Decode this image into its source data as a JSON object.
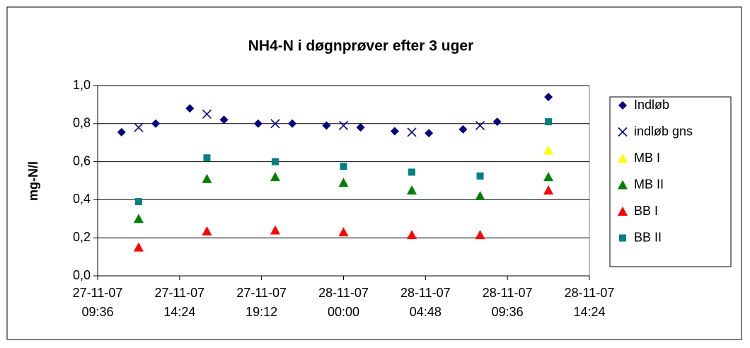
{
  "chart_data": {
    "type": "scatter",
    "title": "NH4-N i døgnprøver efter 3 uger",
    "ylabel": "mg-N/l",
    "xlim": [
      "2007-11-27T09:36",
      "2007-11-28T14:24"
    ],
    "xticks": [
      {
        "value": "2007-11-27T09:36",
        "label": "27-11-07 09:36"
      },
      {
        "value": "2007-11-27T14:24",
        "label": "27-11-07 14:24"
      },
      {
        "value": "2007-11-27T19:12",
        "label": "27-11-07 19:12"
      },
      {
        "value": "2007-11-28T00:00",
        "label": "28-11-07 00:00"
      },
      {
        "value": "2007-11-28T04:48",
        "label": "28-11-07 04:48"
      },
      {
        "value": "2007-11-28T09:36",
        "label": "28-11-07 09:36"
      },
      {
        "value": "2007-11-28T14:24",
        "label": "28-11-07 14:24"
      }
    ],
    "ylim": [
      0,
      1
    ],
    "yticks": [
      {
        "value": 0,
        "label": "0,0"
      },
      {
        "value": 0.2,
        "label": "0,2"
      },
      {
        "value": 0.4,
        "label": "0,4"
      },
      {
        "value": 0.6,
        "label": "0,6"
      },
      {
        "value": 0.8,
        "label": "0,8"
      },
      {
        "value": 1,
        "label": "1,0"
      }
    ],
    "grid": true,
    "legend": "right",
    "series": [
      {
        "name": "Indløb",
        "color": "#000080",
        "marker": "diamond",
        "x": [
          "2007-11-27T11:00",
          "2007-11-27T13:00",
          "2007-11-27T15:00",
          "2007-11-27T17:00",
          "2007-11-27T19:00",
          "2007-11-27T21:00",
          "2007-11-27T23:00",
          "2007-11-28T01:00",
          "2007-11-28T03:00",
          "2007-11-28T05:00",
          "2007-11-28T07:00",
          "2007-11-28T09:00",
          "2007-11-28T12:00"
        ],
        "values": [
          0.755,
          0.8,
          0.88,
          0.82,
          0.8,
          0.8,
          0.79,
          0.78,
          0.76,
          0.75,
          0.77,
          0.81,
          0.94
        ]
      },
      {
        "name": "indløb gns",
        "color": "#000080",
        "marker": "cross",
        "x": [
          "2007-11-27T12:00",
          "2007-11-27T16:00",
          "2007-11-27T20:00",
          "2007-11-28T00:00",
          "2007-11-28T04:00",
          "2007-11-28T08:00"
        ],
        "values": [
          0.78,
          0.85,
          0.8,
          0.79,
          0.755,
          0.79
        ]
      },
      {
        "name": "MB I",
        "color": "#ffff00",
        "marker": "triangle",
        "x": [
          "2007-11-28T12:00"
        ],
        "values": [
          0.66
        ]
      },
      {
        "name": "MB II",
        "color": "#008000",
        "marker": "triangle",
        "x": [
          "2007-11-27T12:00",
          "2007-11-27T16:00",
          "2007-11-27T20:00",
          "2007-11-28T00:00",
          "2007-11-28T04:00",
          "2007-11-28T08:00",
          "2007-11-28T12:00"
        ],
        "values": [
          0.3,
          0.51,
          0.52,
          0.49,
          0.45,
          0.42,
          0.52
        ]
      },
      {
        "name": "BB I",
        "color": "#ff0000",
        "marker": "triangle",
        "x": [
          "2007-11-27T12:00",
          "2007-11-27T16:00",
          "2007-11-27T20:00",
          "2007-11-28T00:00",
          "2007-11-28T04:00",
          "2007-11-28T08:00",
          "2007-11-28T12:00"
        ],
        "values": [
          0.15,
          0.235,
          0.24,
          0.23,
          0.215,
          0.215,
          0.45
        ]
      },
      {
        "name": "BB II",
        "color": "#008080",
        "marker": "square",
        "x": [
          "2007-11-27T12:00",
          "2007-11-27T16:00",
          "2007-11-27T20:00",
          "2007-11-28T00:00",
          "2007-11-28T04:00",
          "2007-11-28T08:00",
          "2007-11-28T12:00"
        ],
        "values": [
          0.39,
          0.62,
          0.6,
          0.575,
          0.545,
          0.525,
          0.81
        ]
      }
    ]
  }
}
